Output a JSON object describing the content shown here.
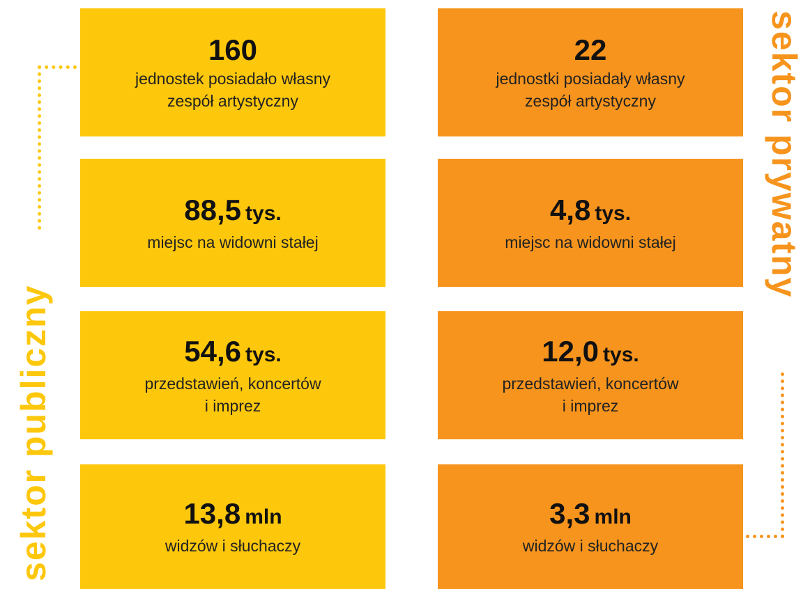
{
  "sectors": [
    {
      "label": "sektor publiczny",
      "color": "#fdc70c",
      "items": [
        {
          "value": "160",
          "lines": [
            "jednostek posiadało własny",
            "zespół artystyczny"
          ]
        },
        {
          "value": "88,5",
          "unit": "tys.",
          "lines": [
            "miejsc na widowni stałej"
          ]
        },
        {
          "value": "54,6",
          "unit": "tys.",
          "lines": [
            "przedstawień, koncertów",
            "i imprez"
          ]
        },
        {
          "value": "13,8",
          "unit": "mln",
          "lines": [
            "widzów i słuchaczy"
          ]
        }
      ]
    },
    {
      "label": "sektor prywatny",
      "color": "#f7941d",
      "items": [
        {
          "value": "22",
          "lines": [
            "jednostki posiadały własny",
            "zespół artystyczny"
          ]
        },
        {
          "value": "4,8",
          "unit": "tys.",
          "lines": [
            "miejsc na widowni stałej"
          ]
        },
        {
          "value": "12,0",
          "unit": "tys.",
          "lines": [
            "przedstawień, koncertów",
            "i imprez"
          ]
        },
        {
          "value": "3,3",
          "unit": "mln",
          "lines": [
            "widzów i słuchaczy"
          ]
        }
      ]
    }
  ]
}
